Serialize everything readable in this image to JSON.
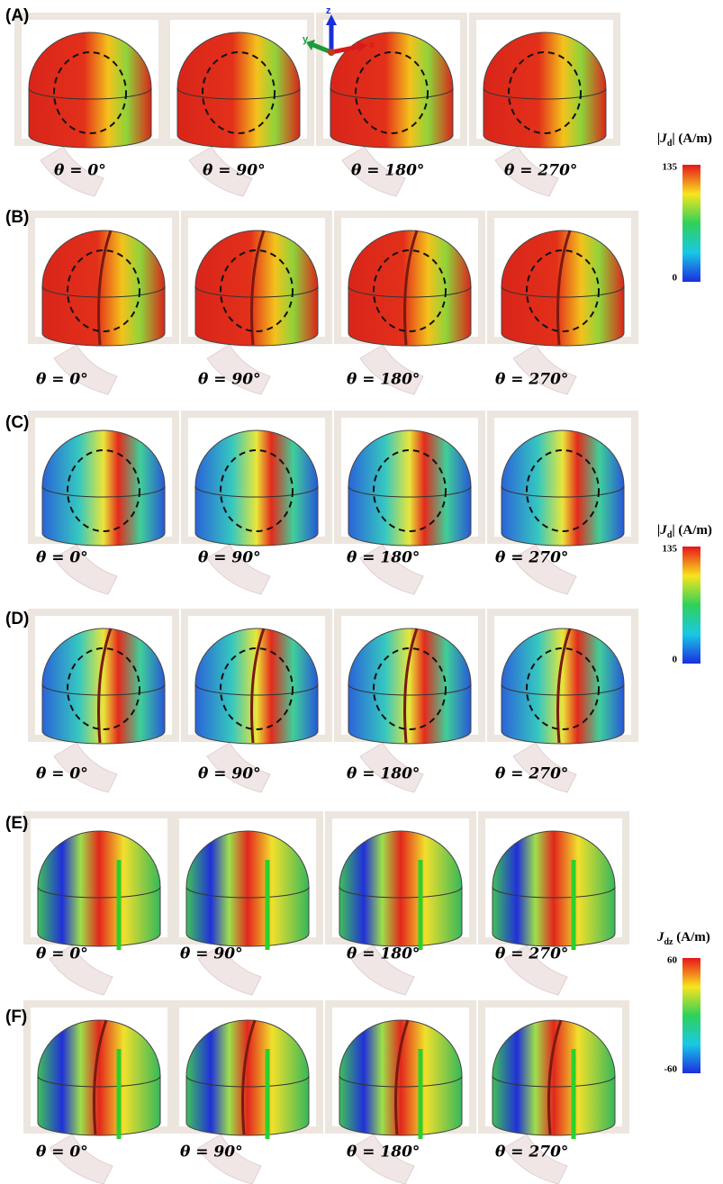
{
  "axes": {
    "z": "z",
    "y": "y",
    "x": "x"
  },
  "panels": [
    {
      "label": "(A)",
      "captions": [
        "θ = 0°",
        "θ = 90°",
        "θ = 180°",
        "θ = 270°"
      ]
    },
    {
      "label": "(B)",
      "captions": [
        "θ = 0°",
        "θ = 90°",
        "θ = 180°",
        "θ = 270°"
      ]
    },
    {
      "label": "(C)",
      "captions": [
        "θ = 0°",
        "θ = 90°",
        "θ = 180°",
        "θ = 270°"
      ]
    },
    {
      "label": "(D)",
      "captions": [
        "θ = 0°",
        "θ = 90°",
        "θ = 180°",
        "θ = 270°"
      ]
    },
    {
      "label": "(E)",
      "captions": [
        "θ = 0°",
        "θ = 90°",
        "θ = 180°",
        "θ = 270°"
      ]
    },
    {
      "label": "(F)",
      "captions": [
        "θ = 0°",
        "θ = 90°",
        "θ = 180°",
        "θ = 270°"
      ]
    }
  ],
  "colorbars": [
    {
      "symbol": "|J",
      "subscript": "d",
      "unit": "| (A/m)",
      "max": "135",
      "min": "0"
    },
    {
      "symbol": "|J",
      "subscript": "d",
      "unit": "| (A/m)",
      "max": "135",
      "min": "0"
    },
    {
      "symbol": "J",
      "subscript": "dz",
      "unit": " (A/m)",
      "max": "60",
      "min": "-60"
    }
  ]
}
